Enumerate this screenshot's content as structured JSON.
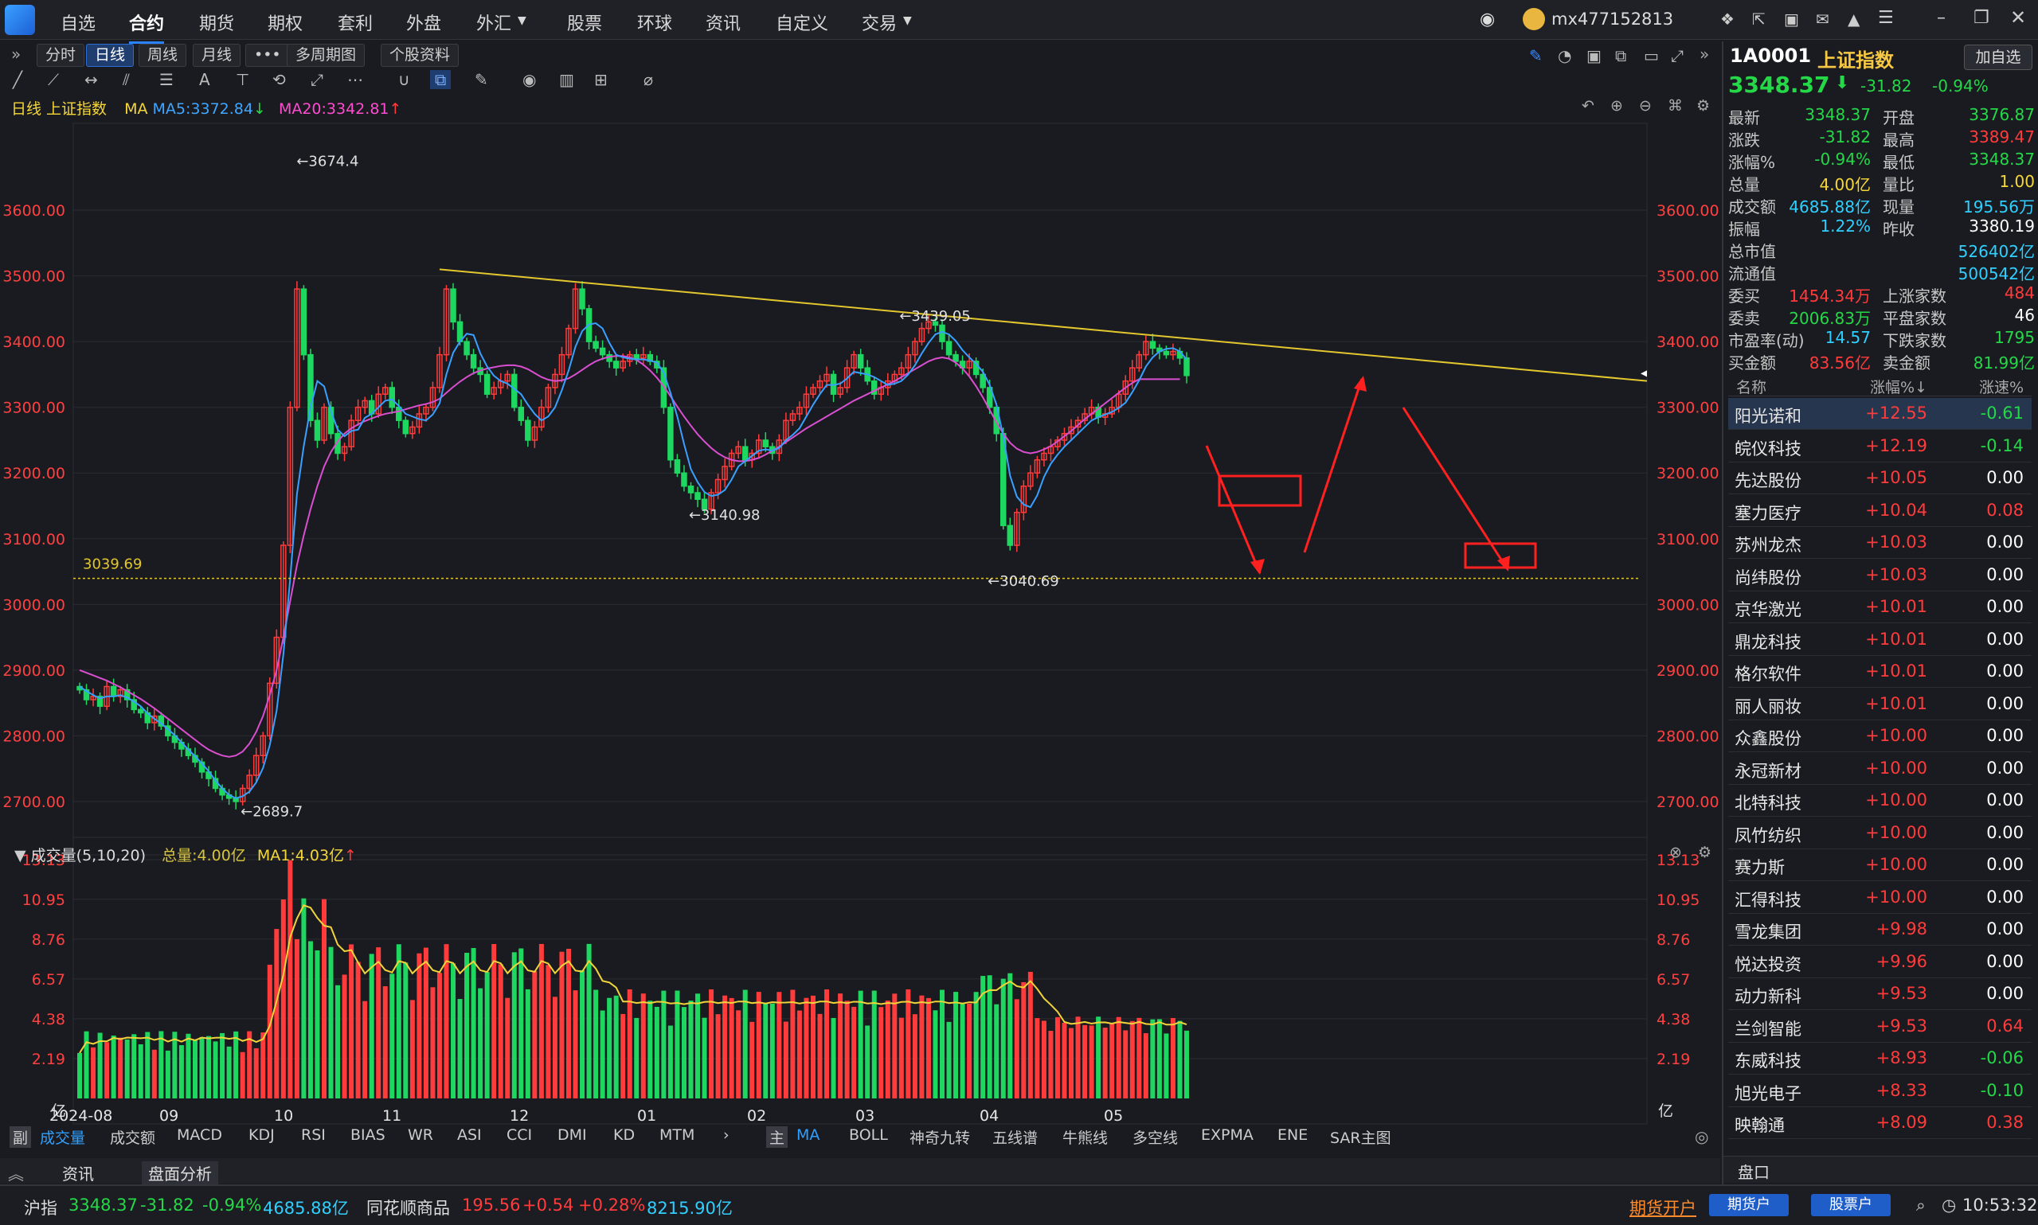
{
  "topbar": {
    "menus": [
      {
        "label": "自选"
      },
      {
        "label": "合约"
      },
      {
        "label": "期货"
      },
      {
        "label": "期权"
      },
      {
        "label": "套利"
      },
      {
        "label": "外盘"
      },
      {
        "label": "外汇"
      },
      {
        "label": "股票"
      },
      {
        "label": "环球"
      },
      {
        "label": "资讯"
      },
      {
        "label": "自定义"
      },
      {
        "label": "交易"
      }
    ],
    "user": "mx477152813"
  },
  "period_tabs": [
    {
      "label": "分时"
    },
    {
      "label": "日线"
    },
    {
      "label": "周线"
    },
    {
      "label": "月线"
    },
    {
      "label": "•••"
    },
    {
      "label": "多周期图"
    },
    {
      "label": "个股资料"
    }
  ],
  "legend": {
    "title": "日线 上证指数",
    "ma_label": "MA",
    "ma5": "MA5:3372.84",
    "ma20": "MA20:3342.81"
  },
  "volume_legend": {
    "title": "成交量(5,10,20)",
    "total": "总量:4.00亿",
    "ma1": "MA1:4.03亿"
  },
  "chart_data": {
    "type": "candlestick",
    "title": "日线 上证指数",
    "ylim": [
      2660,
      3720
    ],
    "y_ticks": [
      "3600.00",
      "3500.00",
      "3400.00",
      "3300.00",
      "3200.00",
      "3100.00",
      "3000.00",
      "2900.00",
      "2800.00",
      "2700.00"
    ],
    "y_tick_values": [
      3600,
      3500,
      3400,
      3300,
      3200,
      3100,
      3000,
      2900,
      2800,
      2700
    ],
    "x_labels": [
      "2024-08",
      "09",
      "10",
      "11",
      "12",
      "01",
      "02",
      "03",
      "04",
      "05"
    ],
    "annotations": [
      {
        "label": "3674.4",
        "value": 3674.4
      },
      {
        "label": "3439.05",
        "value": 3439.05
      },
      {
        "label": "3140.98",
        "value": 3140.98
      },
      {
        "label": "2689.7",
        "value": 2689.7
      },
      {
        "label": "3040.69",
        "value": 3040.69
      },
      {
        "label": "3039.69",
        "value": 3039.69
      }
    ],
    "close_series": [
      2870,
      2855,
      2860,
      2845,
      2875,
      2860,
      2870,
      2855,
      2840,
      2835,
      2820,
      2830,
      2815,
      2800,
      2790,
      2780,
      2770,
      2760,
      2745,
      2735,
      2720,
      2710,
      2705,
      2700,
      2720,
      2740,
      2770,
      2800,
      2880,
      2950,
      3090,
      3300,
      3480,
      3380,
      3280,
      3250,
      3300,
      3260,
      3230,
      3240,
      3280,
      3300,
      3310,
      3290,
      3320,
      3330,
      3300,
      3280,
      3260,
      3270,
      3290,
      3300,
      3330,
      3380,
      3480,
      3430,
      3400,
      3380,
      3360,
      3350,
      3320,
      3330,
      3340,
      3350,
      3300,
      3280,
      3250,
      3270,
      3300,
      3330,
      3350,
      3380,
      3420,
      3480,
      3450,
      3400,
      3390,
      3380,
      3370,
      3360,
      3370,
      3380,
      3375,
      3380,
      3370,
      3360,
      3300,
      3220,
      3200,
      3180,
      3170,
      3160,
      3145,
      3170,
      3190,
      3210,
      3230,
      3240,
      3220,
      3230,
      3250,
      3240,
      3230,
      3250,
      3280,
      3290,
      3300,
      3320,
      3330,
      3340,
      3350,
      3320,
      3330,
      3360,
      3380,
      3360,
      3340,
      3320,
      3330,
      3340,
      3350,
      3360,
      3380,
      3400,
      3420,
      3430,
      3425,
      3400,
      3380,
      3370,
      3360,
      3370,
      3350,
      3330,
      3300,
      3260,
      3120,
      3090,
      3140,
      3180,
      3200,
      3220,
      3230,
      3240,
      3250,
      3260,
      3270,
      3280,
      3290,
      3300,
      3285,
      3290,
      3300,
      3320,
      3340,
      3360,
      3380,
      3400,
      3390,
      3385,
      3380,
      3385,
      3375,
      3348.37
    ],
    "ma5": [
      2875,
      2868,
      2862,
      2857,
      2860,
      2860,
      2862,
      2858,
      2852,
      2845,
      2834,
      2826,
      2819,
      2810,
      2801,
      2790,
      2779,
      2769,
      2758,
      2746,
      2732,
      2720,
      2710,
      2705,
      2708,
      2715,
      2729,
      2751,
      2786,
      2838,
      2924,
      3039,
      3168,
      3241,
      3300,
      3340,
      3332,
      3294,
      3266,
      3256,
      3264,
      3266,
      3284,
      3290,
      3300,
      3310,
      3312,
      3302,
      3290,
      3286,
      3282,
      3280,
      3289,
      3306,
      3350,
      3383,
      3400,
      3412,
      3410,
      3382,
      3362,
      3348,
      3340,
      3336,
      3328,
      3320,
      3304,
      3290,
      3280,
      3286,
      3300,
      3326,
      3356,
      3392,
      3416,
      3426,
      3428,
      3420,
      3398,
      3380,
      3376,
      3374,
      3373,
      3373,
      3371,
      3368,
      3353,
      3322,
      3286,
      3244,
      3206,
      3186,
      3171,
      3165,
      3167,
      3174,
      3190,
      3210,
      3218,
      3226,
      3234,
      3236,
      3234,
      3238,
      3250,
      3258,
      3268,
      3286,
      3304,
      3320,
      3334,
      3334,
      3336,
      3344,
      3354,
      3352,
      3350,
      3346,
      3340,
      3334,
      3336,
      3340,
      3350,
      3364,
      3382,
      3398,
      3411,
      3415,
      3411,
      3401,
      3387,
      3376,
      3366,
      3354,
      3334,
      3304,
      3256,
      3196,
      3164,
      3152,
      3148,
      3166,
      3194,
      3214,
      3228,
      3240,
      3250,
      3260,
      3270,
      3280,
      3285,
      3289,
      3293,
      3299,
      3307,
      3323,
      3341,
      3362,
      3376,
      3385,
      3389,
      3390,
      3385,
      3372.84
    ],
    "ma20": [
      2900,
      2896,
      2892,
      2888,
      2884,
      2879,
      2874,
      2868,
      2862,
      2856,
      2849,
      2842,
      2834,
      2826,
      2818,
      2810,
      2802,
      2794,
      2786,
      2779,
      2774,
      2770,
      2768,
      2770,
      2776,
      2788,
      2806,
      2830,
      2862,
      2900,
      2950,
      3005,
      3060,
      3105,
      3145,
      3180,
      3210,
      3232,
      3248,
      3260,
      3268,
      3274,
      3279,
      3283,
      3287,
      3290,
      3292,
      3294,
      3297,
      3300,
      3303,
      3305,
      3308,
      3313,
      3322,
      3331,
      3339,
      3346,
      3352,
      3356,
      3359,
      3361,
      3363,
      3364,
      3364,
      3362,
      3358,
      3352,
      3346,
      3342,
      3340,
      3341,
      3344,
      3350,
      3357,
      3364,
      3370,
      3374,
      3377,
      3378,
      3378,
      3376,
      3372,
      3365,
      3356,
      3345,
      3332,
      3317,
      3301,
      3286,
      3272,
      3259,
      3248,
      3238,
      3230,
      3224,
      3220,
      3218,
      3218,
      3220,
      3223,
      3228,
      3234,
      3240,
      3247,
      3254,
      3261,
      3268,
      3274,
      3280,
      3286,
      3292,
      3298,
      3304,
      3310,
      3315,
      3320,
      3325,
      3330,
      3335,
      3340,
      3346,
      3352,
      3358,
      3364,
      3370,
      3374,
      3376,
      3374,
      3368,
      3359,
      3347,
      3332,
      3315,
      3296,
      3277,
      3260,
      3246,
      3237,
      3232,
      3230,
      3232,
      3236,
      3241,
      3248,
      3256,
      3264,
      3273,
      3282,
      3290,
      3298,
      3306,
      3314,
      3322,
      3330,
      3337,
      3342.81,
      3342.81,
      3342.81,
      3342.81,
      3342.81,
      3342.81,
      3342.81
    ],
    "volume_ylim": [
      0,
      13.13
    ],
    "volume_ticks": [
      "13.13",
      "10.95",
      "8.76",
      "6.57",
      "4.38",
      "2.19"
    ],
    "volume_tick_values": [
      13.13,
      10.95,
      8.76,
      6.57,
      4.38,
      2.19
    ],
    "volume_unit": "亿"
  },
  "indicator_tabs": [
    {
      "label": "副"
    },
    {
      "label": "成交量"
    },
    {
      "label": "成交额"
    },
    {
      "label": "MACD"
    },
    {
      "label": "KDJ"
    },
    {
      "label": "RSI"
    },
    {
      "label": "BIAS"
    },
    {
      "label": "WR"
    },
    {
      "label": "ASI"
    },
    {
      "label": "CCI"
    },
    {
      "label": "DMI"
    },
    {
      "label": "KD"
    },
    {
      "label": "MTM"
    }
  ],
  "main_tabs": [
    {
      "label": "主"
    },
    {
      "label": "MA"
    },
    {
      "label": "BOLL"
    },
    {
      "label": "神奇九转"
    },
    {
      "label": "五线谱"
    },
    {
      "label": "牛熊线"
    },
    {
      "label": "多空线"
    },
    {
      "label": "EXPMA"
    },
    {
      "label": "ENE"
    },
    {
      "label": "SAR主图"
    }
  ],
  "bottom_tabs": [
    {
      "label": "资讯"
    },
    {
      "label": "盘面分析"
    }
  ],
  "quote": {
    "code": "1A0001",
    "name": "上证指数",
    "add_btn": "加自选",
    "price": "3348.37",
    "change": "-31.82",
    "pct": "-0.94%",
    "rows": [
      {
        "l1": "最新",
        "v1": "3348.37",
        "c1": "green",
        "l2": "开盘",
        "v2": "3376.87",
        "c2": "green"
      },
      {
        "l1": "涨跌",
        "v1": "-31.82",
        "c1": "green",
        "l2": "最高",
        "v2": "3389.47",
        "c2": "red"
      },
      {
        "l1": "涨幅%",
        "v1": "-0.94%",
        "c1": "green",
        "l2": "最低",
        "v2": "3348.37",
        "c2": "green"
      },
      {
        "l1": "总量",
        "v1": "4.00亿",
        "c1": "yellow",
        "l2": "量比",
        "v2": "1.00",
        "c2": "yellow"
      },
      {
        "l1": "成交额",
        "v1": "4685.88亿",
        "c1": "cyan",
        "l2": "现量",
        "v2": "195.56万",
        "c2": "cyan"
      },
      {
        "l1": "振幅",
        "v1": "1.22%",
        "c1": "cyan",
        "l2": "昨收",
        "v2": "3380.19",
        "c2": "white"
      },
      {
        "l1": "总市值",
        "v1": "",
        "c1": "white",
        "l2": "",
        "v2": "526402亿",
        "c2": "cyan"
      },
      {
        "l1": "流通值",
        "v1": "",
        "c1": "white",
        "l2": "",
        "v2": "500542亿",
        "c2": "cyan"
      },
      {
        "l1": "委买",
        "v1": "1454.34万",
        "c1": "red",
        "l2": "上涨家数",
        "v2": "484",
        "c2": "red"
      },
      {
        "l1": "委卖",
        "v1": "2006.83万",
        "c1": "green",
        "l2": "平盘家数",
        "v2": "46",
        "c2": "white"
      },
      {
        "l1": "市盈率(动)",
        "v1": "14.57",
        "c1": "cyan",
        "l2": "下跌家数",
        "v2": "1795",
        "c2": "green"
      },
      {
        "l1": "买金额",
        "v1": "83.56亿",
        "c1": "red",
        "l2": "卖金额",
        "v2": "81.99亿",
        "c2": "green"
      }
    ],
    "list_headers": {
      "name": "名称",
      "pct": "涨幅%↓",
      "speed": "涨速%"
    },
    "stocks": [
      {
        "name": "阳光诺和",
        "pct": "+12.55",
        "speed": "-0.61",
        "sc": "green"
      },
      {
        "name": "皖仪科技",
        "pct": "+12.19",
        "speed": "-0.14",
        "sc": "green"
      },
      {
        "name": "先达股份",
        "pct": "+10.05",
        "speed": "0.00",
        "sc": "white"
      },
      {
        "name": "塞力医疗",
        "pct": "+10.04",
        "speed": "0.08",
        "sc": "red"
      },
      {
        "name": "苏州龙杰",
        "pct": "+10.03",
        "speed": "0.00",
        "sc": "white"
      },
      {
        "name": "尚纬股份",
        "pct": "+10.03",
        "speed": "0.00",
        "sc": "white"
      },
      {
        "name": "京华激光",
        "pct": "+10.01",
        "speed": "0.00",
        "sc": "white"
      },
      {
        "name": "鼎龙科技",
        "pct": "+10.01",
        "speed": "0.00",
        "sc": "white"
      },
      {
        "name": "格尔软件",
        "pct": "+10.01",
        "speed": "0.00",
        "sc": "white"
      },
      {
        "name": "丽人丽妆",
        "pct": "+10.01",
        "speed": "0.00",
        "sc": "white"
      },
      {
        "name": "众鑫股份",
        "pct": "+10.00",
        "speed": "0.00",
        "sc": "white"
      },
      {
        "name": "永冠新材",
        "pct": "+10.00",
        "speed": "0.00",
        "sc": "white"
      },
      {
        "name": "北特科技",
        "pct": "+10.00",
        "speed": "0.00",
        "sc": "white"
      },
      {
        "name": "凤竹纺织",
        "pct": "+10.00",
        "speed": "0.00",
        "sc": "white"
      },
      {
        "name": "赛力斯",
        "pct": "+10.00",
        "speed": "0.00",
        "sc": "white"
      },
      {
        "name": "汇得科技",
        "pct": "+10.00",
        "speed": "0.00",
        "sc": "white"
      },
      {
        "name": "雪龙集团",
        "pct": "+9.98",
        "speed": "0.00",
        "sc": "white"
      },
      {
        "name": "悦达投资",
        "pct": "+9.96",
        "speed": "0.00",
        "sc": "white"
      },
      {
        "name": "动力新科",
        "pct": "+9.53",
        "speed": "0.00",
        "sc": "white"
      },
      {
        "name": "兰剑智能",
        "pct": "+9.53",
        "speed": "0.64",
        "sc": "red"
      },
      {
        "name": "东威科技",
        "pct": "+8.93",
        "speed": "-0.06",
        "sc": "green"
      },
      {
        "name": "旭光电子",
        "pct": "+8.33",
        "speed": "-0.10",
        "sc": "green"
      },
      {
        "name": "映翰通",
        "pct": "+8.09",
        "speed": "0.38",
        "sc": "red"
      }
    ],
    "panel_tab": "盘口"
  },
  "status": {
    "sh_label": "沪指",
    "sh_price": "3348.37",
    "sh_chg": "-31.82",
    "sh_pct": "-0.94%",
    "sh_amt": "4685.88亿",
    "ths_label": "同花顺商品",
    "ths_price": "195.56",
    "ths_chg": "+0.54",
    "ths_pct": "+0.28%",
    "ths_amt": "8215.90亿",
    "open_acct": "期货开户",
    "fut_btn": "期货户",
    "stk_btn": "股票户",
    "time": "10:53:32"
  }
}
